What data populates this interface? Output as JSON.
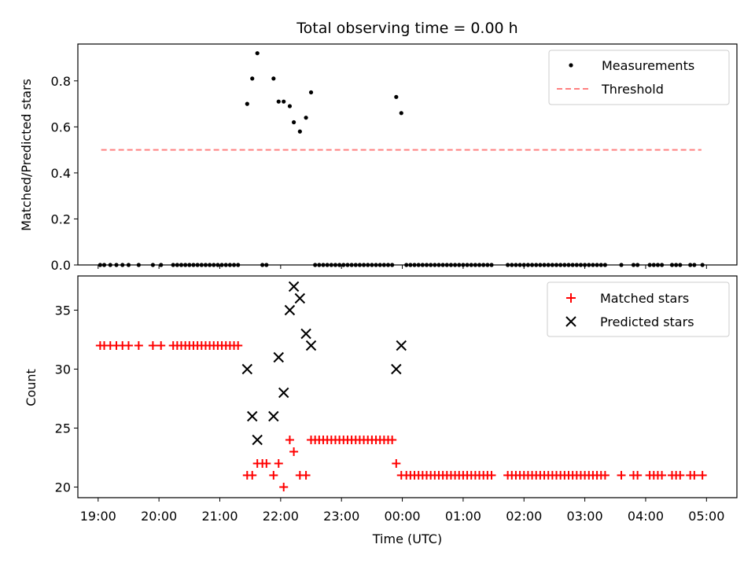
{
  "chart_data": [
    {
      "type": "scatter",
      "title": "Total observing time = 0.00 h",
      "xlabel": "",
      "ylabel": "Matched/Predicted stars",
      "xlim": [
        "18:40",
        "29:30"
      ],
      "ylim": [
        0,
        0.96
      ],
      "yticks": [
        "0.0",
        "0.2",
        "0.4",
        "0.6",
        "0.8"
      ],
      "legend": {
        "position": "upper right",
        "entries": [
          "Measurements",
          "Threshold"
        ]
      },
      "threshold": {
        "name": "Threshold",
        "y": 0.5,
        "x_range": [
          "19:03",
          "28:55"
        ],
        "color": "#ff7f7f",
        "style": "dashed"
      },
      "series": [
        {
          "name": "Measurements",
          "marker": "dot",
          "color": "#000000",
          "points": [
            [
              "19:02",
              0
            ],
            [
              "19:06",
              0
            ],
            [
              "19:12",
              0
            ],
            [
              "19:18",
              0
            ],
            [
              "19:24",
              0
            ],
            [
              "19:30",
              0
            ],
            [
              "19:40",
              0
            ],
            [
              "19:54",
              0
            ],
            [
              "20:02",
              0
            ],
            [
              "20:14",
              0
            ],
            [
              "20:18",
              0
            ],
            [
              "20:22",
              0
            ],
            [
              "20:26",
              0
            ],
            [
              "20:30",
              0
            ],
            [
              "20:34",
              0
            ],
            [
              "20:38",
              0
            ],
            [
              "20:42",
              0
            ],
            [
              "20:46",
              0
            ],
            [
              "20:50",
              0
            ],
            [
              "20:54",
              0
            ],
            [
              "20:58",
              0
            ],
            [
              "21:02",
              0
            ],
            [
              "21:06",
              0
            ],
            [
              "21:10",
              0
            ],
            [
              "21:14",
              0
            ],
            [
              "21:18",
              0
            ],
            [
              "21:27",
              0.7
            ],
            [
              "21:32",
              0.81
            ],
            [
              "21:37",
              0.92
            ],
            [
              "21:42",
              0
            ],
            [
              "21:46",
              0
            ],
            [
              "21:53",
              0.81
            ],
            [
              "21:58",
              0.71
            ],
            [
              "22:03",
              0.71
            ],
            [
              "22:09",
              0.69
            ],
            [
              "22:13",
              0.62
            ],
            [
              "22:19",
              0.58
            ],
            [
              "22:25",
              0.64
            ],
            [
              "22:30",
              0.75
            ],
            [
              "22:34",
              0
            ],
            [
              "22:38",
              0
            ],
            [
              "22:42",
              0
            ],
            [
              "22:46",
              0
            ],
            [
              "22:50",
              0
            ],
            [
              "22:54",
              0
            ],
            [
              "22:58",
              0
            ],
            [
              "23:02",
              0
            ],
            [
              "23:06",
              0
            ],
            [
              "23:10",
              0
            ],
            [
              "23:14",
              0
            ],
            [
              "23:18",
              0
            ],
            [
              "23:22",
              0
            ],
            [
              "23:26",
              0
            ],
            [
              "23:30",
              0
            ],
            [
              "23:34",
              0
            ],
            [
              "23:38",
              0
            ],
            [
              "23:42",
              0
            ],
            [
              "23:46",
              0
            ],
            [
              "23:50",
              0
            ],
            [
              "23:54",
              0.73
            ],
            [
              "23:59",
              0.66
            ],
            [
              "24:04",
              0
            ],
            [
              "24:08",
              0
            ],
            [
              "24:12",
              0
            ],
            [
              "24:16",
              0
            ],
            [
              "24:20",
              0
            ],
            [
              "24:24",
              0
            ],
            [
              "24:28",
              0
            ],
            [
              "24:32",
              0
            ],
            [
              "24:36",
              0
            ],
            [
              "24:40",
              0
            ],
            [
              "24:44",
              0
            ],
            [
              "24:48",
              0
            ],
            [
              "24:52",
              0
            ],
            [
              "24:56",
              0
            ],
            [
              "25:00",
              0
            ],
            [
              "25:04",
              0
            ],
            [
              "25:08",
              0
            ],
            [
              "25:12",
              0
            ],
            [
              "25:16",
              0
            ],
            [
              "25:20",
              0
            ],
            [
              "25:24",
              0
            ],
            [
              "25:28",
              0
            ],
            [
              "25:44",
              0
            ],
            [
              "25:48",
              0
            ],
            [
              "25:52",
              0
            ],
            [
              "25:56",
              0
            ],
            [
              "26:00",
              0
            ],
            [
              "26:04",
              0
            ],
            [
              "26:08",
              0
            ],
            [
              "26:12",
              0
            ],
            [
              "26:16",
              0
            ],
            [
              "26:20",
              0
            ],
            [
              "26:24",
              0
            ],
            [
              "26:28",
              0
            ],
            [
              "26:32",
              0
            ],
            [
              "26:36",
              0
            ],
            [
              "26:40",
              0
            ],
            [
              "26:44",
              0
            ],
            [
              "26:48",
              0
            ],
            [
              "26:52",
              0
            ],
            [
              "26:56",
              0
            ],
            [
              "27:00",
              0
            ],
            [
              "27:04",
              0
            ],
            [
              "27:08",
              0
            ],
            [
              "27:12",
              0
            ],
            [
              "27:16",
              0
            ],
            [
              "27:20",
              0
            ],
            [
              "27:36",
              0
            ],
            [
              "27:48",
              0
            ],
            [
              "27:52",
              0
            ],
            [
              "28:04",
              0
            ],
            [
              "28:08",
              0
            ],
            [
              "28:12",
              0
            ],
            [
              "28:16",
              0
            ],
            [
              "28:26",
              0
            ],
            [
              "28:30",
              0
            ],
            [
              "28:34",
              0
            ],
            [
              "28:44",
              0
            ],
            [
              "28:48",
              0
            ],
            [
              "28:56",
              0
            ]
          ]
        }
      ]
    },
    {
      "type": "scatter",
      "title": "",
      "xlabel": "Time (UTC)",
      "ylabel": "Count",
      "xlim": [
        "18:40",
        "29:30"
      ],
      "ylim": [
        19.1,
        37.9
      ],
      "yticks": [
        20,
        25,
        30,
        35
      ],
      "xticks": [
        "19:00",
        "20:00",
        "21:00",
        "22:00",
        "23:00",
        "00:00",
        "01:00",
        "02:00",
        "03:00",
        "04:00",
        "05:00"
      ],
      "legend": {
        "position": "upper right",
        "entries": [
          "Matched stars",
          "Predicted stars"
        ]
      },
      "series": [
        {
          "name": "Matched stars",
          "marker": "plus",
          "color": "#ff0000",
          "points": [
            [
              "19:02",
              32
            ],
            [
              "19:06",
              32
            ],
            [
              "19:12",
              32
            ],
            [
              "19:18",
              32
            ],
            [
              "19:24",
              32
            ],
            [
              "19:30",
              32
            ],
            [
              "19:40",
              32
            ],
            [
              "19:54",
              32
            ],
            [
              "20:02",
              32
            ],
            [
              "20:14",
              32
            ],
            [
              "20:18",
              32
            ],
            [
              "20:22",
              32
            ],
            [
              "20:26",
              32
            ],
            [
              "20:30",
              32
            ],
            [
              "20:34",
              32
            ],
            [
              "20:38",
              32
            ],
            [
              "20:42",
              32
            ],
            [
              "20:46",
              32
            ],
            [
              "20:50",
              32
            ],
            [
              "20:54",
              32
            ],
            [
              "20:58",
              32
            ],
            [
              "21:02",
              32
            ],
            [
              "21:06",
              32
            ],
            [
              "21:10",
              32
            ],
            [
              "21:14",
              32
            ],
            [
              "21:18",
              32
            ],
            [
              "21:27",
              21
            ],
            [
              "21:32",
              21
            ],
            [
              "21:37",
              22
            ],
            [
              "21:42",
              22
            ],
            [
              "21:46",
              22
            ],
            [
              "21:53",
              21
            ],
            [
              "21:58",
              22
            ],
            [
              "22:03",
              20
            ],
            [
              "22:09",
              24
            ],
            [
              "22:13",
              23
            ],
            [
              "22:19",
              21
            ],
            [
              "22:25",
              21
            ],
            [
              "22:30",
              24
            ],
            [
              "22:34",
              24
            ],
            [
              "22:38",
              24
            ],
            [
              "22:42",
              24
            ],
            [
              "22:46",
              24
            ],
            [
              "22:50",
              24
            ],
            [
              "22:54",
              24
            ],
            [
              "22:58",
              24
            ],
            [
              "23:02",
              24
            ],
            [
              "23:06",
              24
            ],
            [
              "23:10",
              24
            ],
            [
              "23:14",
              24
            ],
            [
              "23:18",
              24
            ],
            [
              "23:22",
              24
            ],
            [
              "23:26",
              24
            ],
            [
              "23:30",
              24
            ],
            [
              "23:34",
              24
            ],
            [
              "23:38",
              24
            ],
            [
              "23:42",
              24
            ],
            [
              "23:46",
              24
            ],
            [
              "23:50",
              24
            ],
            [
              "23:54",
              22
            ],
            [
              "23:59",
              21
            ],
            [
              "24:04",
              21
            ],
            [
              "24:08",
              21
            ],
            [
              "24:12",
              21
            ],
            [
              "24:16",
              21
            ],
            [
              "24:20",
              21
            ],
            [
              "24:24",
              21
            ],
            [
              "24:28",
              21
            ],
            [
              "24:32",
              21
            ],
            [
              "24:36",
              21
            ],
            [
              "24:40",
              21
            ],
            [
              "24:44",
              21
            ],
            [
              "24:48",
              21
            ],
            [
              "24:52",
              21
            ],
            [
              "24:56",
              21
            ],
            [
              "25:00",
              21
            ],
            [
              "25:04",
              21
            ],
            [
              "25:08",
              21
            ],
            [
              "25:12",
              21
            ],
            [
              "25:16",
              21
            ],
            [
              "25:20",
              21
            ],
            [
              "25:24",
              21
            ],
            [
              "25:28",
              21
            ],
            [
              "25:44",
              21
            ],
            [
              "25:48",
              21
            ],
            [
              "25:52",
              21
            ],
            [
              "25:56",
              21
            ],
            [
              "26:00",
              21
            ],
            [
              "26:04",
              21
            ],
            [
              "26:08",
              21
            ],
            [
              "26:12",
              21
            ],
            [
              "26:16",
              21
            ],
            [
              "26:20",
              21
            ],
            [
              "26:24",
              21
            ],
            [
              "26:28",
              21
            ],
            [
              "26:32",
              21
            ],
            [
              "26:36",
              21
            ],
            [
              "26:40",
              21
            ],
            [
              "26:44",
              21
            ],
            [
              "26:48",
              21
            ],
            [
              "26:52",
              21
            ],
            [
              "26:56",
              21
            ],
            [
              "27:00",
              21
            ],
            [
              "27:04",
              21
            ],
            [
              "27:08",
              21
            ],
            [
              "27:12",
              21
            ],
            [
              "27:16",
              21
            ],
            [
              "27:20",
              21
            ],
            [
              "27:36",
              21
            ],
            [
              "27:48",
              21
            ],
            [
              "27:52",
              21
            ],
            [
              "28:04",
              21
            ],
            [
              "28:08",
              21
            ],
            [
              "28:12",
              21
            ],
            [
              "28:16",
              21
            ],
            [
              "28:26",
              21
            ],
            [
              "28:30",
              21
            ],
            [
              "28:34",
              21
            ],
            [
              "28:44",
              21
            ],
            [
              "28:48",
              21
            ],
            [
              "28:56",
              21
            ]
          ]
        },
        {
          "name": "Predicted stars",
          "marker": "x",
          "color": "#000000",
          "points": [
            [
              "21:27",
              30
            ],
            [
              "21:32",
              26
            ],
            [
              "21:37",
              24
            ],
            [
              "21:53",
              26
            ],
            [
              "21:58",
              31
            ],
            [
              "22:03",
              28
            ],
            [
              "22:09",
              35
            ],
            [
              "22:13",
              37
            ],
            [
              "22:19",
              36
            ],
            [
              "22:25",
              33
            ],
            [
              "22:30",
              32
            ],
            [
              "23:54",
              30
            ],
            [
              "23:59",
              32
            ]
          ]
        }
      ]
    }
  ]
}
